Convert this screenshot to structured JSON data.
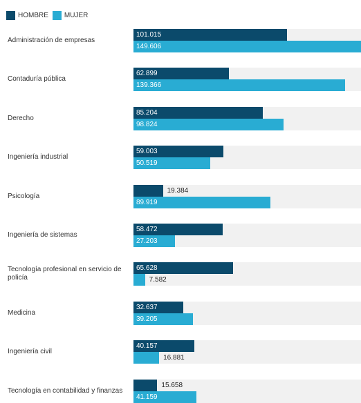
{
  "colors": {
    "hombre": "#0b4a6b",
    "mujer": "#29acd3",
    "track": "#f1f1f1"
  },
  "chart_data": {
    "type": "bar",
    "orientation": "horizontal",
    "legend_position": "top-left",
    "xlim": [
      0,
      149.606
    ],
    "categories": [
      "Administración de empresas",
      "Contaduría pública",
      "Derecho",
      "Ingeniería industrial",
      "Psicología",
      "Ingeniería de sistemas",
      "Tecnología profesional en servicio de policía",
      "Medicina",
      "Ingeniería civil",
      "Tecnología en contabilidad y finanzas"
    ],
    "series": [
      {
        "name": "HOMBRE",
        "values": [
          101.015,
          62.899,
          85.204,
          59.003,
          19.384,
          58.472,
          65.628,
          32.637,
          40.157,
          15.658
        ],
        "labels": [
          "101.015",
          "62.899",
          "85.204",
          "59.003",
          "19.384",
          "58.472",
          "65.628",
          "32.637",
          "40.157",
          "15.658"
        ]
      },
      {
        "name": "MUJER",
        "values": [
          149.606,
          139.366,
          98.824,
          50.519,
          89.919,
          27.203,
          7.582,
          39.205,
          16.881,
          41.159
        ],
        "labels": [
          "149.606",
          "139.366",
          "98.824",
          "50.519",
          "89.919",
          "27.203",
          "7.582",
          "39.205",
          "16.881",
          "41.159"
        ]
      }
    ]
  }
}
